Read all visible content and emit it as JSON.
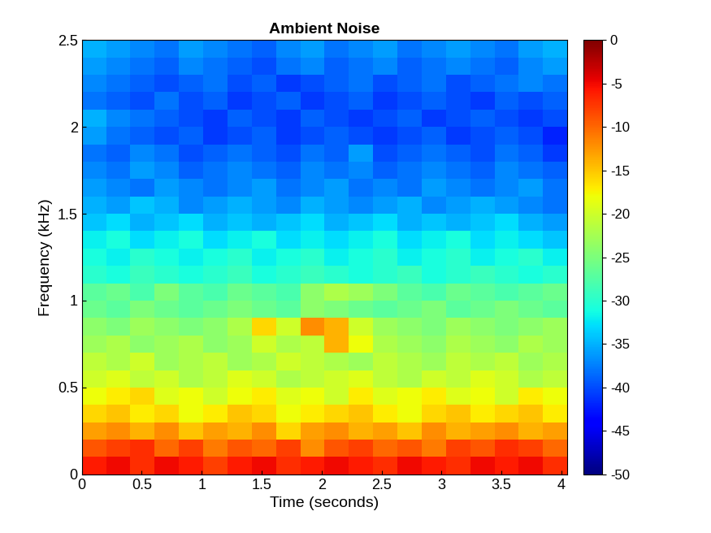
{
  "chart_data": {
    "type": "heatmap",
    "title": "Ambient Noise",
    "x_label": "Time (seconds)",
    "y_label": "Frequency (kHz)",
    "xlim": [
      0,
      4.05
    ],
    "ylim": [
      0,
      2.5
    ],
    "xticks": [
      0,
      0.5,
      1,
      1.5,
      2,
      2.5,
      3,
      3.5,
      4
    ],
    "yticks": [
      0,
      0.5,
      1,
      1.5,
      2,
      2.5
    ],
    "colorbar_range": [
      -50,
      0
    ],
    "colorbar_ticks": [
      -50,
      -45,
      -40,
      -35,
      -30,
      -25,
      -20,
      -15,
      -10,
      -5,
      0
    ],
    "color": "jet",
    "cells": [
      [
        -6,
        -5,
        -7,
        -5,
        -6,
        -8,
        -6,
        -5,
        -7,
        -6,
        -5,
        -6,
        -7,
        -5,
        -6,
        -7,
        -5,
        -6,
        -5,
        -7
      ],
      [
        -9,
        -8,
        -7,
        -10,
        -8,
        -11,
        -9,
        -10,
        -8,
        -12,
        -9,
        -8,
        -10,
        -9,
        -11,
        -8,
        -9,
        -7,
        -8,
        -10
      ],
      [
        -13,
        -12,
        -14,
        -12,
        -15,
        -13,
        -14,
        -12,
        -16,
        -13,
        -12,
        -14,
        -13,
        -15,
        -12,
        -14,
        -13,
        -12,
        -14,
        -13
      ],
      [
        -16,
        -15,
        -17,
        -16,
        -18,
        -17,
        -15,
        -16,
        -18,
        -17,
        -16,
        -15,
        -17,
        -18,
        -16,
        -15,
        -17,
        -16,
        -15,
        -17
      ],
      [
        -18,
        -17,
        -16,
        -19,
        -18,
        -20,
        -18,
        -17,
        -19,
        -18,
        -20,
        -17,
        -19,
        -18,
        -17,
        -19,
        -18,
        -20,
        -17,
        -18
      ],
      [
        -20,
        -19,
        -21,
        -20,
        -22,
        -21,
        -19,
        -20,
        -22,
        -21,
        -20,
        -19,
        -21,
        -22,
        -20,
        -21,
        -19,
        -20,
        -22,
        -21
      ],
      [
        -21,
        -22,
        -20,
        -23,
        -22,
        -21,
        -23,
        -22,
        -20,
        -21,
        -22,
        -23,
        -21,
        -22,
        -23,
        -21,
        -22,
        -21,
        -23,
        -22
      ],
      [
        -23,
        -22,
        -24,
        -23,
        -22,
        -24,
        -23,
        -20,
        -22,
        -21,
        -14,
        -18,
        -22,
        -23,
        -24,
        -22,
        -23,
        -24,
        -22,
        -23
      ],
      [
        -24,
        -25,
        -23,
        -24,
        -25,
        -24,
        -22,
        -16,
        -20,
        -12,
        -14,
        -20,
        -23,
        -24,
        -25,
        -23,
        -24,
        -25,
        -24,
        -23
      ],
      [
        -26,
        -27,
        -25,
        -26,
        -27,
        -26,
        -25,
        -26,
        -27,
        -24,
        -25,
        -26,
        -27,
        -26,
        -25,
        -27,
        -26,
        -25,
        -26,
        -27
      ],
      [
        -27,
        -26,
        -28,
        -25,
        -27,
        -28,
        -26,
        -27,
        -28,
        -24,
        -22,
        -23,
        -25,
        -27,
        -28,
        -26,
        -27,
        -28,
        -27,
        -26
      ],
      [
        -30,
        -31,
        -29,
        -30,
        -31,
        -30,
        -29,
        -31,
        -30,
        -29,
        -30,
        -31,
        -30,
        -29,
        -31,
        -30,
        -29,
        -30,
        -31,
        -30
      ],
      [
        -31,
        -32,
        -30,
        -31,
        -32,
        -31,
        -30,
        -32,
        -31,
        -30,
        -32,
        -31,
        -30,
        -32,
        -31,
        -30,
        -32,
        -31,
        -30,
        -32
      ],
      [
        -32,
        -31,
        -33,
        -32,
        -31,
        -33,
        -32,
        -31,
        -33,
        -32,
        -33,
        -32,
        -31,
        -33,
        -32,
        -31,
        -33,
        -32,
        -33,
        -34
      ],
      [
        -34,
        -33,
        -35,
        -34,
        -33,
        -35,
        -34,
        -35,
        -34,
        -33,
        -35,
        -34,
        -33,
        -35,
        -34,
        -35,
        -34,
        -33,
        -35,
        -36
      ],
      [
        -35,
        -36,
        -34,
        -35,
        -37,
        -36,
        -35,
        -36,
        -37,
        -35,
        -36,
        -37,
        -36,
        -35,
        -37,
        -36,
        -35,
        -36,
        -37,
        -38
      ],
      [
        -36,
        -37,
        -38,
        -36,
        -37,
        -38,
        -37,
        -36,
        -38,
        -37,
        -36,
        -38,
        -37,
        -38,
        -36,
        -37,
        -38,
        -37,
        -36,
        -38
      ],
      [
        -37,
        -38,
        -36,
        -37,
        -39,
        -38,
        -37,
        -38,
        -39,
        -37,
        -38,
        -37,
        -39,
        -38,
        -37,
        -38,
        -39,
        -37,
        -38,
        -39
      ],
      [
        -38,
        -39,
        -37,
        -38,
        -40,
        -39,
        -38,
        -39,
        -40,
        -38,
        -39,
        -36,
        -40,
        -39,
        -38,
        -39,
        -40,
        -38,
        -39,
        -41
      ],
      [
        -36,
        -38,
        -39,
        -40,
        -39,
        -41,
        -40,
        -39,
        -41,
        -40,
        -39,
        -40,
        -41,
        -40,
        -39,
        -41,
        -40,
        -39,
        -40,
        -42
      ],
      [
        -35,
        -37,
        -38,
        -39,
        -40,
        -41,
        -39,
        -40,
        -41,
        -39,
        -40,
        -41,
        -40,
        -39,
        -41,
        -40,
        -39,
        -40,
        -41,
        -40
      ],
      [
        -38,
        -39,
        -40,
        -38,
        -40,
        -39,
        -41,
        -40,
        -39,
        -41,
        -40,
        -39,
        -41,
        -40,
        -39,
        -40,
        -41,
        -39,
        -40,
        -39
      ],
      [
        -37,
        -38,
        -39,
        -40,
        -39,
        -38,
        -40,
        -39,
        -41,
        -40,
        -39,
        -38,
        -40,
        -39,
        -38,
        -40,
        -39,
        -38,
        -37,
        -38
      ],
      [
        -36,
        -37,
        -38,
        -39,
        -37,
        -38,
        -39,
        -40,
        -38,
        -37,
        -39,
        -38,
        -37,
        -39,
        -38,
        -37,
        -38,
        -39,
        -37,
        -36
      ],
      [
        -35,
        -36,
        -37,
        -38,
        -36,
        -37,
        -38,
        -39,
        -37,
        -36,
        -38,
        -37,
        -36,
        -38,
        -37,
        -36,
        -37,
        -38,
        -36,
        -35
      ]
    ]
  }
}
